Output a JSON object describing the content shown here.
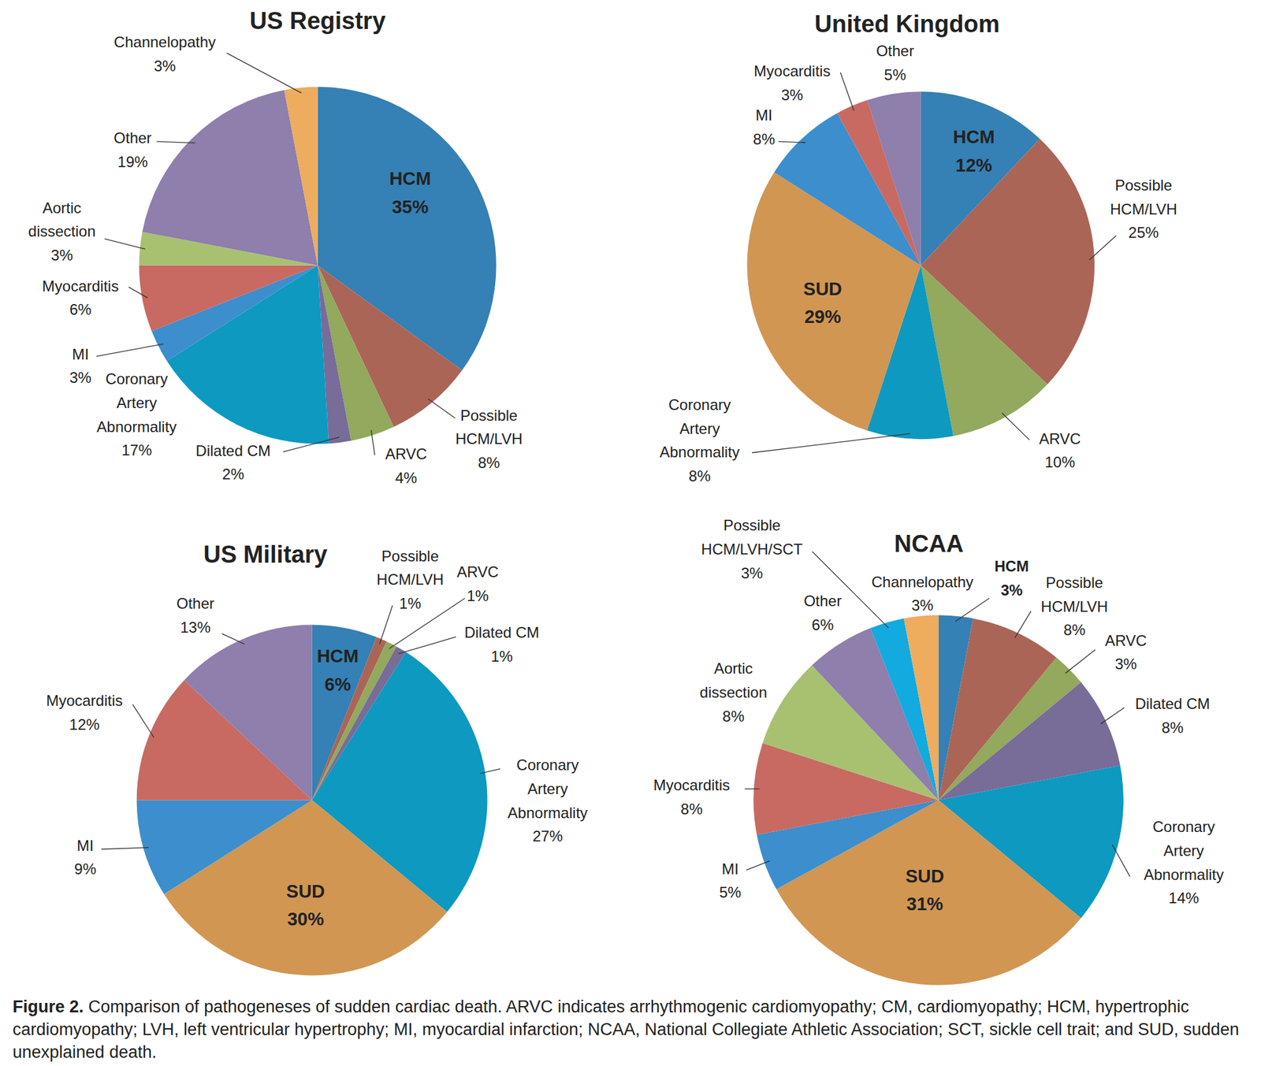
{
  "chart_data": [
    {
      "type": "pie",
      "title": "US Registry",
      "categories": [
        "HCM",
        "Possible HCM/LVH",
        "ARVC",
        "Dilated CM",
        "Coronary Artery Abnormality",
        "MI",
        "Myocarditis",
        "Aortic dissection",
        "Other",
        "Channelopathy"
      ],
      "values": [
        35,
        8,
        4,
        2,
        17,
        3,
        6,
        3,
        19,
        3
      ],
      "value_labels": [
        "35%",
        "8%",
        "4%",
        "2%",
        "17%",
        "3%",
        "6%",
        "3%",
        "19%",
        "3%"
      ],
      "colors": [
        "#3580b4",
        "#ab6556",
        "#92a95e",
        "#786c98",
        "#0e99c0",
        "#3c8ecd",
        "#c86a62",
        "#a8c170",
        "#8e7fac",
        "#eeac5e"
      ],
      "data_labels": true
    },
    {
      "type": "pie",
      "title": "United Kingdom",
      "categories": [
        "HCM",
        "Possible HCM/LVH",
        "ARVC",
        "Coronary Artery Abnormality",
        "SUD",
        "MI",
        "Myocarditis",
        "Other"
      ],
      "values": [
        12,
        25,
        10,
        8,
        29,
        8,
        3,
        5
      ],
      "value_labels": [
        "12%",
        "25%",
        "10%",
        "8%",
        "29%",
        "8%",
        "3%",
        "5%"
      ],
      "colors": [
        "#3580b4",
        "#ab6556",
        "#92a95e",
        "#0e99c0",
        "#d19652",
        "#3c8ecd",
        "#c86a62",
        "#8e7fac"
      ],
      "data_labels": true
    },
    {
      "type": "pie",
      "title": "US Military",
      "categories": [
        "HCM",
        "Possible HCM/LVH",
        "ARVC",
        "Dilated CM",
        "Coronary Artery Abnormality",
        "SUD",
        "MI",
        "Myocarditis",
        "Other"
      ],
      "values": [
        6,
        1,
        1,
        1,
        27,
        30,
        9,
        12,
        13
      ],
      "value_labels": [
        "6%",
        "1%",
        "1%",
        "1%",
        "27%",
        "30%",
        "9%",
        "12%",
        "13%"
      ],
      "colors": [
        "#3580b4",
        "#ab6556",
        "#92a95e",
        "#786c98",
        "#0e99c0",
        "#d19652",
        "#3c8ecd",
        "#c86a62",
        "#8e7fac"
      ],
      "data_labels": true
    },
    {
      "type": "pie",
      "title": "NCAA",
      "categories": [
        "HCM",
        "Possible HCM/LVH",
        "ARVC",
        "Dilated CM",
        "Coronary Artery Abnormality",
        "SUD",
        "MI",
        "Myocarditis",
        "Aortic dissection",
        "Other",
        "Possible HCM/LVH/SCT",
        "Channelopathy"
      ],
      "values": [
        3,
        8,
        3,
        8,
        14,
        31,
        5,
        8,
        8,
        6,
        3,
        3
      ],
      "value_labels": [
        "3%",
        "8%",
        "3%",
        "8%",
        "14%",
        "31%",
        "5%",
        "8%",
        "8%",
        "6%",
        "3%",
        "3%"
      ],
      "colors": [
        "#3580b4",
        "#ab6556",
        "#92a95e",
        "#786c98",
        "#0e99c0",
        "#d19652",
        "#3c8ecd",
        "#c86a62",
        "#a8c170",
        "#8e7fac",
        "#12aadf",
        "#eeac5e"
      ],
      "data_labels": true
    }
  ],
  "caption": {
    "label": "Figure 2.",
    "text": "Comparison of pathogeneses of sudden cardiac death. ARVC indicates arrhythmogenic cardiomyopathy; CM, cardiomyopathy; HCM, hypertrophic cardiomyopathy; LVH, left ventricular hypertrophy; MI, myocardial infarction; NCAA, National Collegiate Athletic Association; SCT, sickle cell trait; and SUD, sudden unexplained death."
  }
}
